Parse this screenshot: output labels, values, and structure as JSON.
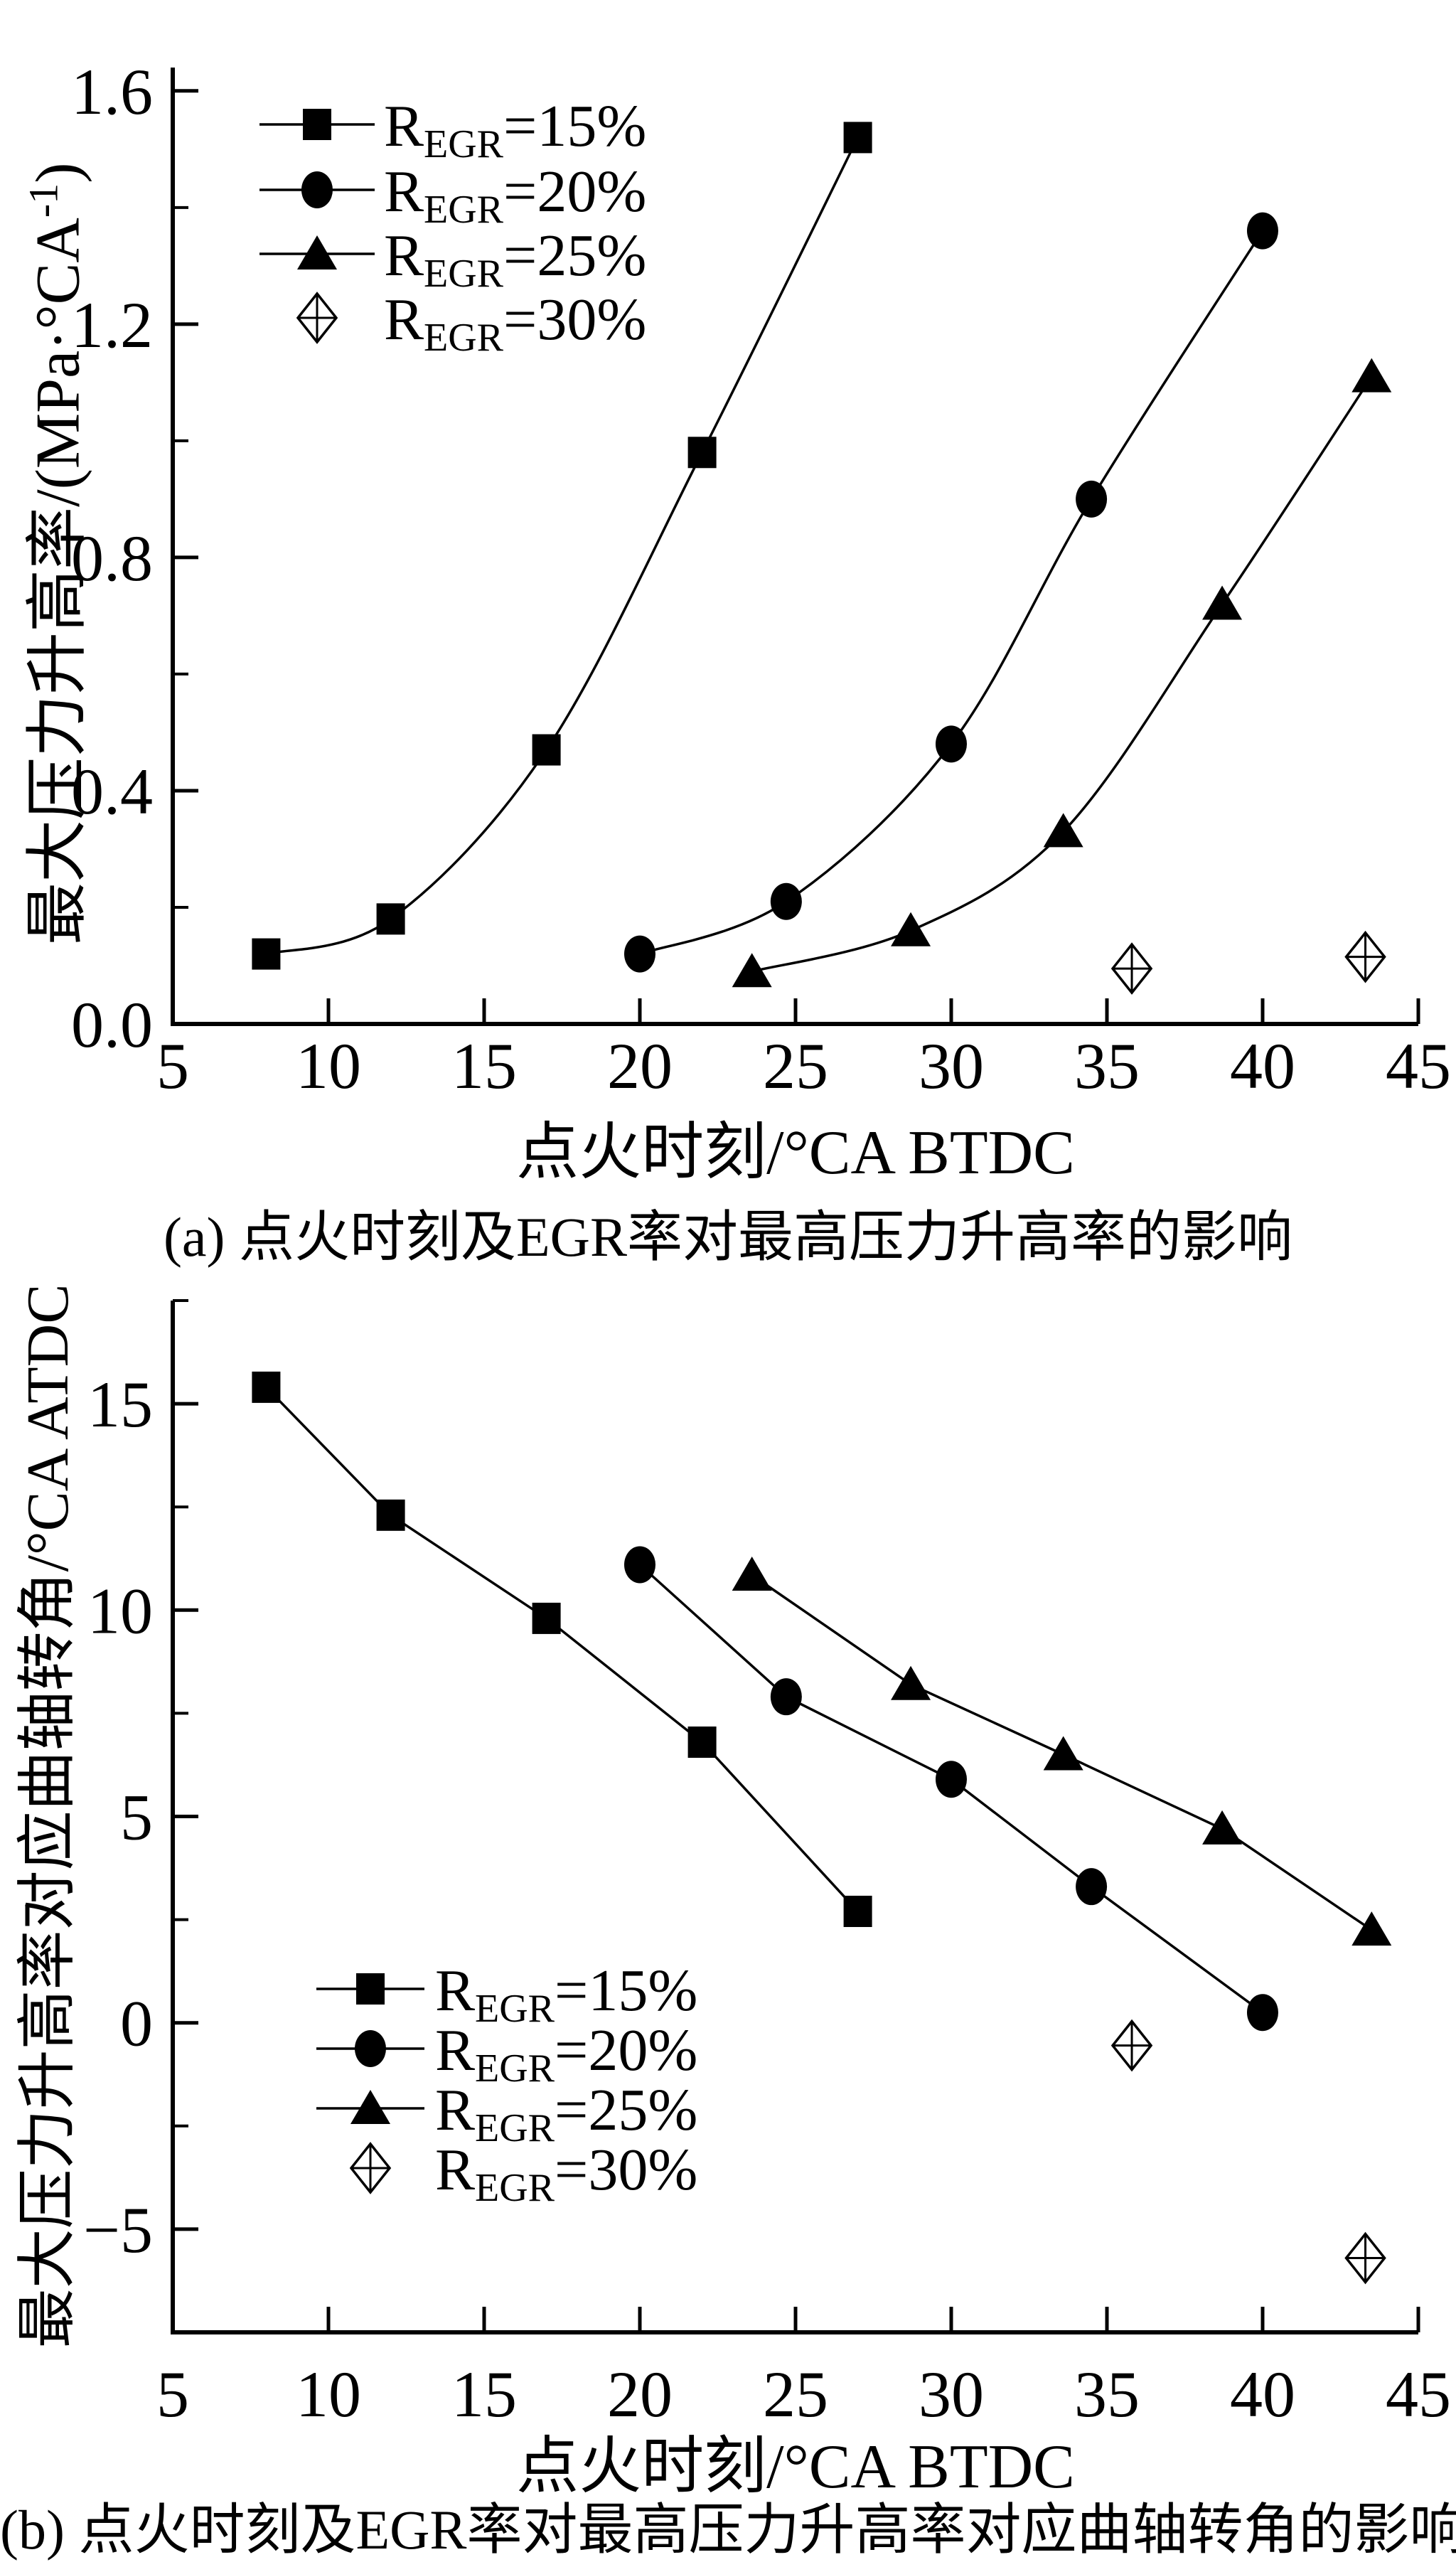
{
  "page": {
    "background": "#ffffff",
    "ink": "#000000"
  },
  "chart_data": [
    {
      "id": "a",
      "type": "line",
      "xlabel": "点火时刻/°CA BTDC",
      "ylabel_pre": "最大压力升高率/(MPa·°CA",
      "ylabel_sup": "-1",
      "ylabel_post": ")",
      "caption": "(a) 点火时刻及EGR率对最高压力升高率的影响",
      "xlim": [
        5,
        45
      ],
      "ylim": [
        0,
        1.64
      ],
      "xticks": [
        5,
        10,
        15,
        20,
        25,
        30,
        35,
        40,
        45
      ],
      "xtick_labels": [
        "5",
        "10",
        "15",
        "20",
        "25",
        "30",
        "35",
        "40",
        "45"
      ],
      "yticks": [
        0,
        0.4,
        0.8,
        1.2,
        1.6
      ],
      "ytick_labels": [
        "0.0",
        "0.4",
        "0.8",
        "1.2",
        "1.6"
      ],
      "yminor": [
        0.2,
        0.6,
        1.0,
        1.4
      ],
      "grid": false,
      "legend_position": "upper-left-inside",
      "legend": [
        {
          "marker": "square",
          "label_r": "R",
          "label_sub": "EGR",
          "label_rest": "=15%",
          "line": true
        },
        {
          "marker": "circle",
          "label_r": "R",
          "label_sub": "EGR",
          "label_rest": "=20%",
          "line": true
        },
        {
          "marker": "triangle",
          "label_r": "R",
          "label_sub": "EGR",
          "label_rest": "=25%",
          "line": true
        },
        {
          "marker": "diamond-cross",
          "label_r": "R",
          "label_sub": "EGR",
          "label_rest": "=30%",
          "line": false
        }
      ],
      "series": [
        {
          "name": "REGR=15%",
          "marker": "square",
          "line": true,
          "smooth": true,
          "x": [
            8,
            12,
            17,
            22,
            27
          ],
          "y": [
            0.12,
            0.18,
            0.47,
            0.98,
            1.52
          ]
        },
        {
          "name": "REGR=20%",
          "marker": "circle",
          "line": true,
          "smooth": true,
          "x": [
            20,
            24.7,
            30,
            34.5,
            40
          ],
          "y": [
            0.12,
            0.21,
            0.48,
            0.9,
            1.36
          ]
        },
        {
          "name": "REGR=25%",
          "marker": "triangle",
          "line": true,
          "smooth": true,
          "x": [
            23.6,
            28.7,
            33.6,
            38.7,
            43.5
          ],
          "y": [
            0.09,
            0.16,
            0.33,
            0.72,
            1.11
          ]
        },
        {
          "name": "REGR=30%",
          "marker": "diamond-cross",
          "line": false,
          "smooth": false,
          "x": [
            35.8,
            43.3
          ],
          "y": [
            0.095,
            0.115
          ]
        }
      ]
    },
    {
      "id": "b",
      "type": "line",
      "xlabel": "点火时刻/°CA BTDC",
      "ylabel": "最大压力升高率对应曲轴转角/°CA ATDC",
      "caption": "(b) 点火时刻及EGR率对最高压力升高率对应曲轴转角的影响",
      "xlim": [
        5,
        45
      ],
      "ylim": [
        -7.5,
        17.5
      ],
      "xticks": [
        5,
        10,
        15,
        20,
        25,
        30,
        35,
        40,
        45
      ],
      "xtick_labels": [
        "5",
        "10",
        "15",
        "20",
        "25",
        "30",
        "35",
        "40",
        "45"
      ],
      "yticks": [
        -5,
        0,
        5,
        10,
        15
      ],
      "ytick_labels": [
        "−5",
        "0",
        "5",
        "10",
        "15"
      ],
      "yminor": [
        -7.5,
        -2.5,
        2.5,
        7.5,
        12.5,
        17.5
      ],
      "grid": false,
      "legend_position": "lower-left-inside",
      "legend": [
        {
          "marker": "square",
          "label_r": "R",
          "label_sub": "EGR",
          "label_rest": "=15%",
          "line": true
        },
        {
          "marker": "circle",
          "label_r": "R",
          "label_sub": "EGR",
          "label_rest": "=20%",
          "line": true
        },
        {
          "marker": "triangle",
          "label_r": "R",
          "label_sub": "EGR",
          "label_rest": "=25%",
          "line": true
        },
        {
          "marker": "diamond-cross",
          "label_r": "R",
          "label_sub": "EGR",
          "label_rest": "=30%",
          "line": false
        }
      ],
      "series": [
        {
          "name": "REGR=15%",
          "marker": "square",
          "line": true,
          "smooth": false,
          "x": [
            8,
            12,
            17,
            22,
            27
          ],
          "y": [
            15.4,
            12.3,
            9.8,
            6.8,
            2.7
          ]
        },
        {
          "name": "REGR=20%",
          "marker": "circle",
          "line": true,
          "smooth": false,
          "x": [
            20,
            24.7,
            30,
            34.5,
            40
          ],
          "y": [
            11.1,
            7.9,
            5.9,
            3.3,
            0.25
          ]
        },
        {
          "name": "REGR=25%",
          "marker": "triangle",
          "line": true,
          "smooth": false,
          "x": [
            23.6,
            28.7,
            33.6,
            38.7,
            43.5
          ],
          "y": [
            10.85,
            8.2,
            6.5,
            4.7,
            2.25
          ]
        },
        {
          "name": "REGR=30%",
          "marker": "diamond-cross",
          "line": false,
          "smooth": false,
          "x": [
            35.8,
            43.3
          ],
          "y": [
            -0.55,
            -5.7
          ]
        }
      ]
    }
  ]
}
